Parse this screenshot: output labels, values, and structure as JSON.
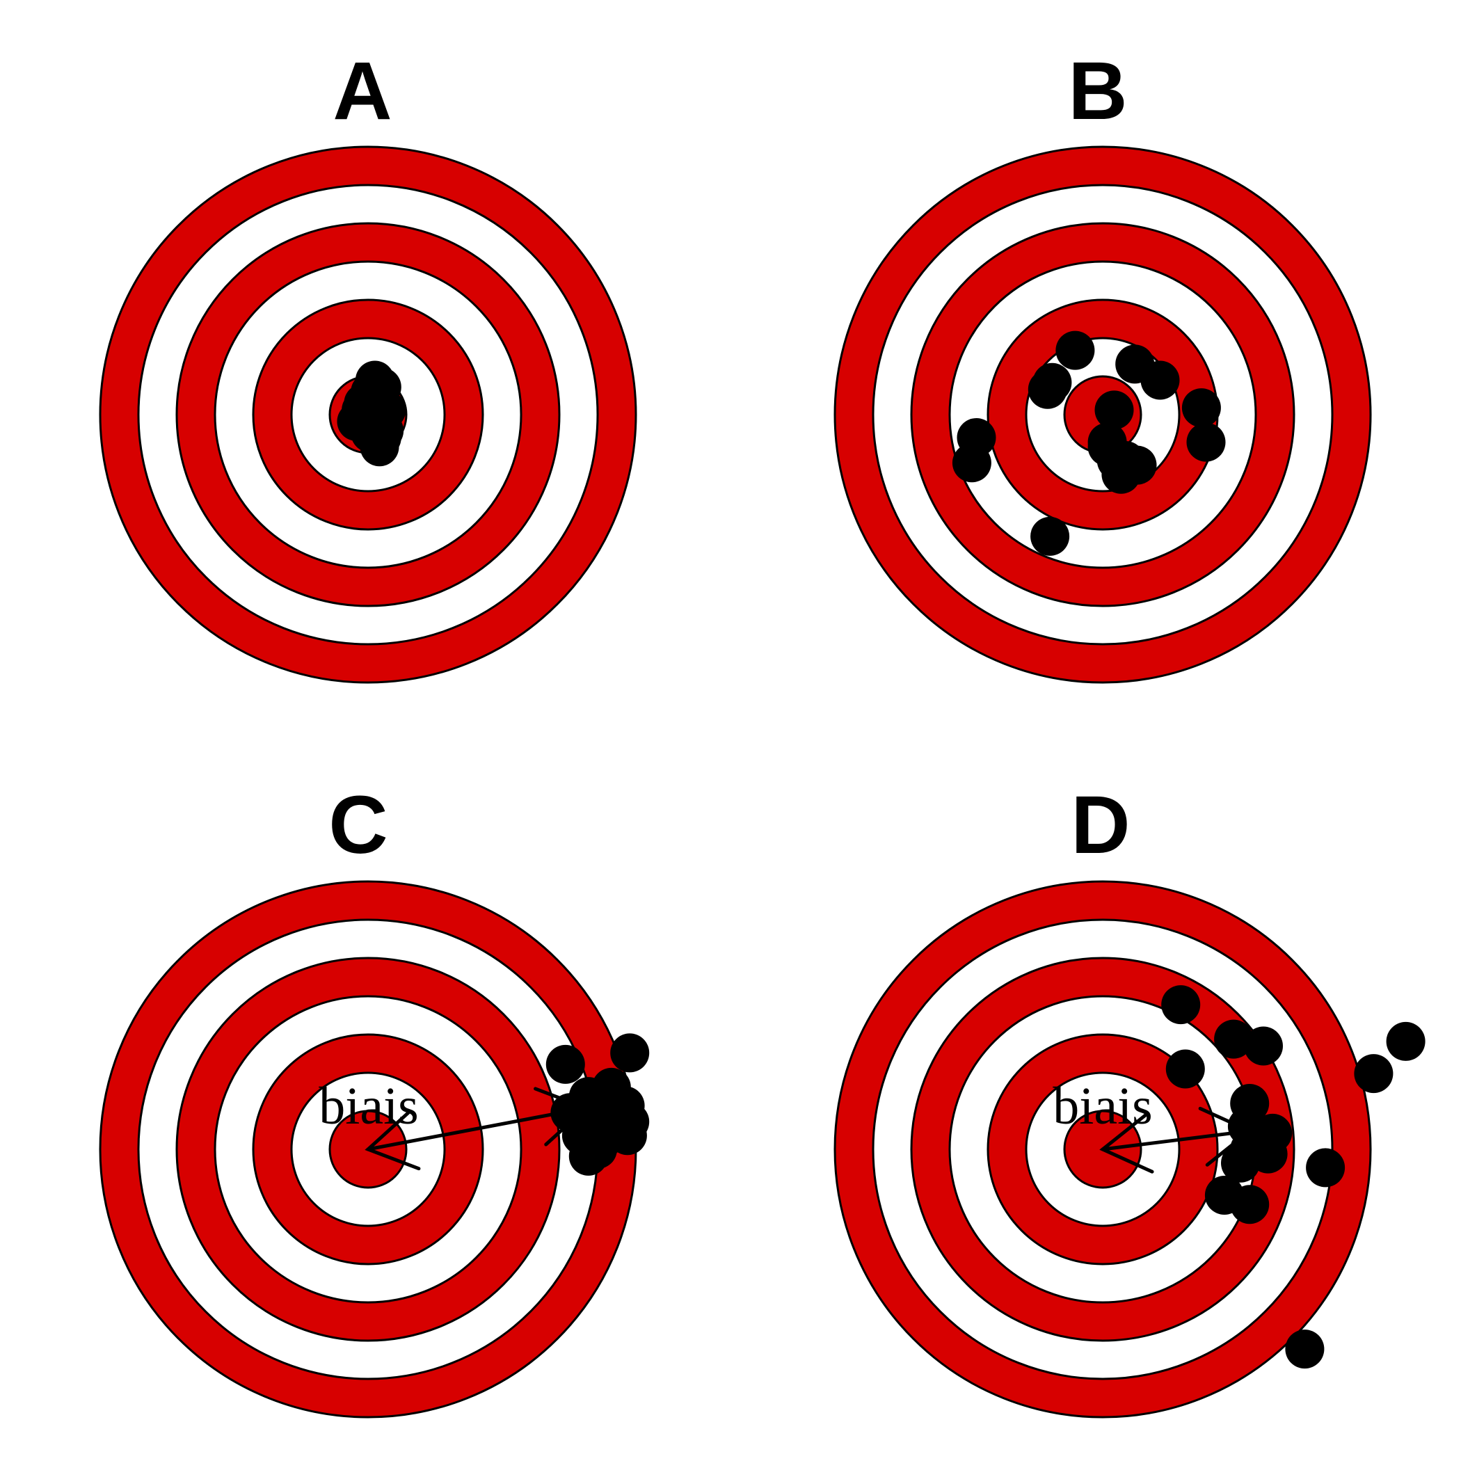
{
  "colors": {
    "ring": "#d70000",
    "gap": "#ffffff",
    "outline": "#000000",
    "shot": "#000000"
  },
  "panels": [
    {
      "label": "A",
      "bias_label": "",
      "has_bias_arrow": false,
      "shots": [
        [
          0.03,
          0.15
        ],
        [
          0.06,
          0.12
        ],
        [
          0.02,
          0.07
        ],
        [
          0.05,
          0.03
        ],
        [
          0.08,
          0.02
        ],
        [
          -0.03,
          0.02
        ],
        [
          0.0,
          -0.02
        ],
        [
          -0.05,
          -0.03
        ],
        [
          0.03,
          -0.06
        ],
        [
          0.01,
          -0.08
        ],
        [
          0.07,
          -0.07
        ],
        [
          0.05,
          -0.14
        ],
        [
          -0.02,
          0.05
        ],
        [
          0.04,
          -0.03
        ],
        [
          0.01,
          0.1
        ],
        [
          0.06,
          -0.1
        ]
      ]
    },
    {
      "label": "B",
      "bias_label": "",
      "has_bias_arrow": false,
      "shots": [
        [
          -0.12,
          0.28
        ],
        [
          0.14,
          0.22
        ],
        [
          0.25,
          0.15
        ],
        [
          -0.22,
          0.14
        ],
        [
          -0.24,
          0.11
        ],
        [
          0.43,
          0.03
        ],
        [
          0.05,
          0.02
        ],
        [
          0.45,
          -0.12
        ],
        [
          -0.55,
          -0.1
        ],
        [
          -0.57,
          -0.21
        ],
        [
          0.02,
          -0.12
        ],
        [
          0.02,
          -0.14
        ],
        [
          0.06,
          -0.2
        ],
        [
          0.1,
          -0.2
        ],
        [
          0.15,
          -0.22
        ],
        [
          0.08,
          -0.26
        ],
        [
          -0.23,
          -0.53
        ]
      ]
    },
    {
      "label": "C",
      "bias_label": "biais",
      "has_bias_arrow": true,
      "centroid": [
        0.95,
        0.18
      ],
      "shots": [
        [
          0.86,
          0.37
        ],
        [
          1.14,
          0.42
        ],
        [
          0.96,
          0.23
        ],
        [
          1.06,
          0.27
        ],
        [
          1.0,
          0.21
        ],
        [
          0.95,
          0.13
        ],
        [
          1.05,
          0.19
        ],
        [
          1.12,
          0.19
        ],
        [
          1.14,
          0.12
        ],
        [
          1.13,
          0.06
        ],
        [
          0.93,
          0.06
        ],
        [
          1.0,
          0.0
        ],
        [
          0.96,
          -0.03
        ],
        [
          0.98,
          0.1
        ],
        [
          0.88,
          0.16
        ],
        [
          1.03,
          0.05
        ]
      ]
    },
    {
      "label": "D",
      "bias_label": "biais",
      "has_bias_arrow": true,
      "centroid": [
        0.64,
        0.08
      ],
      "shots": [
        [
          0.34,
          0.63
        ],
        [
          0.57,
          0.48
        ],
        [
          0.7,
          0.45
        ],
        [
          1.18,
          0.33
        ],
        [
          1.32,
          0.47
        ],
        [
          0.36,
          0.35
        ],
        [
          0.64,
          0.2
        ],
        [
          0.63,
          0.1
        ],
        [
          0.7,
          0.02
        ],
        [
          0.64,
          0.0
        ],
        [
          0.74,
          0.07
        ],
        [
          0.6,
          -0.06
        ],
        [
          0.72,
          -0.02
        ],
        [
          0.97,
          -0.08
        ],
        [
          0.53,
          -0.2
        ],
        [
          0.64,
          -0.24
        ],
        [
          0.88,
          -0.87
        ]
      ]
    }
  ]
}
